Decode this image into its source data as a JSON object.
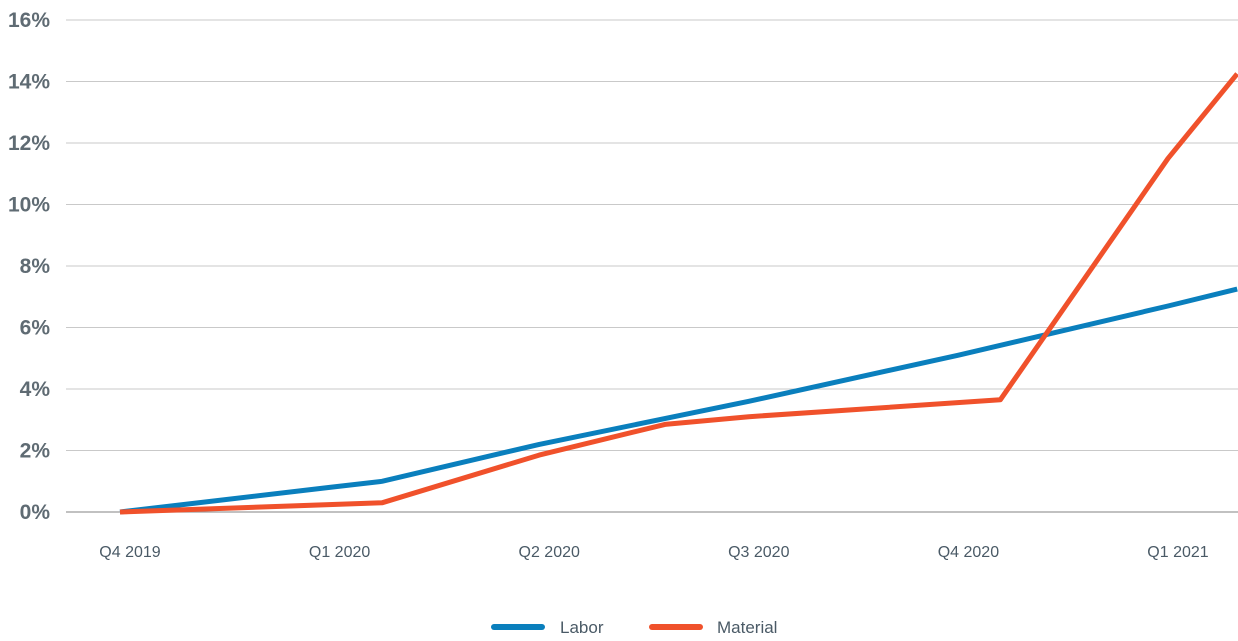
{
  "chart_data": {
    "type": "line",
    "title": "",
    "xlabel": "",
    "ylabel": "",
    "ylim": [
      0,
      16
    ],
    "y_ticks": [
      0,
      2,
      4,
      6,
      8,
      10,
      12,
      14,
      16
    ],
    "y_tick_labels": [
      "0%",
      "2%",
      "4%",
      "6%",
      "8%",
      "10%",
      "12%",
      "14%",
      "16%"
    ],
    "categories": [
      "Q4 2019",
      "Q1 2020",
      "Q2 2020",
      "Q3 2020",
      "Q4 2020",
      "Q1 2021"
    ],
    "grid": true,
    "legend_position": "bottom-center",
    "series": [
      {
        "name": "Labor",
        "color": "#0a7fbd",
        "points": [
          {
            "x": 0,
            "y": 0
          },
          {
            "x": 1,
            "y": 0.8
          },
          {
            "x": 1.25,
            "y": 1.0
          },
          {
            "x": 2,
            "y": 2.2
          },
          {
            "x": 3,
            "y": 3.6
          },
          {
            "x": 4,
            "y": 5.1
          },
          {
            "x": 5,
            "y": 6.7
          },
          {
            "x": 5.33,
            "y": 7.25
          }
        ]
      },
      {
        "name": "Material",
        "color": "#f0512b",
        "points": [
          {
            "x": 0,
            "y": 0
          },
          {
            "x": 1.25,
            "y": 0.3
          },
          {
            "x": 2,
            "y": 1.85
          },
          {
            "x": 2.6,
            "y": 2.85
          },
          {
            "x": 3,
            "y": 3.1
          },
          {
            "x": 4.2,
            "y": 3.65
          },
          {
            "x": 5,
            "y": 11.5
          },
          {
            "x": 5.33,
            "y": 14.25
          }
        ]
      }
    ]
  }
}
